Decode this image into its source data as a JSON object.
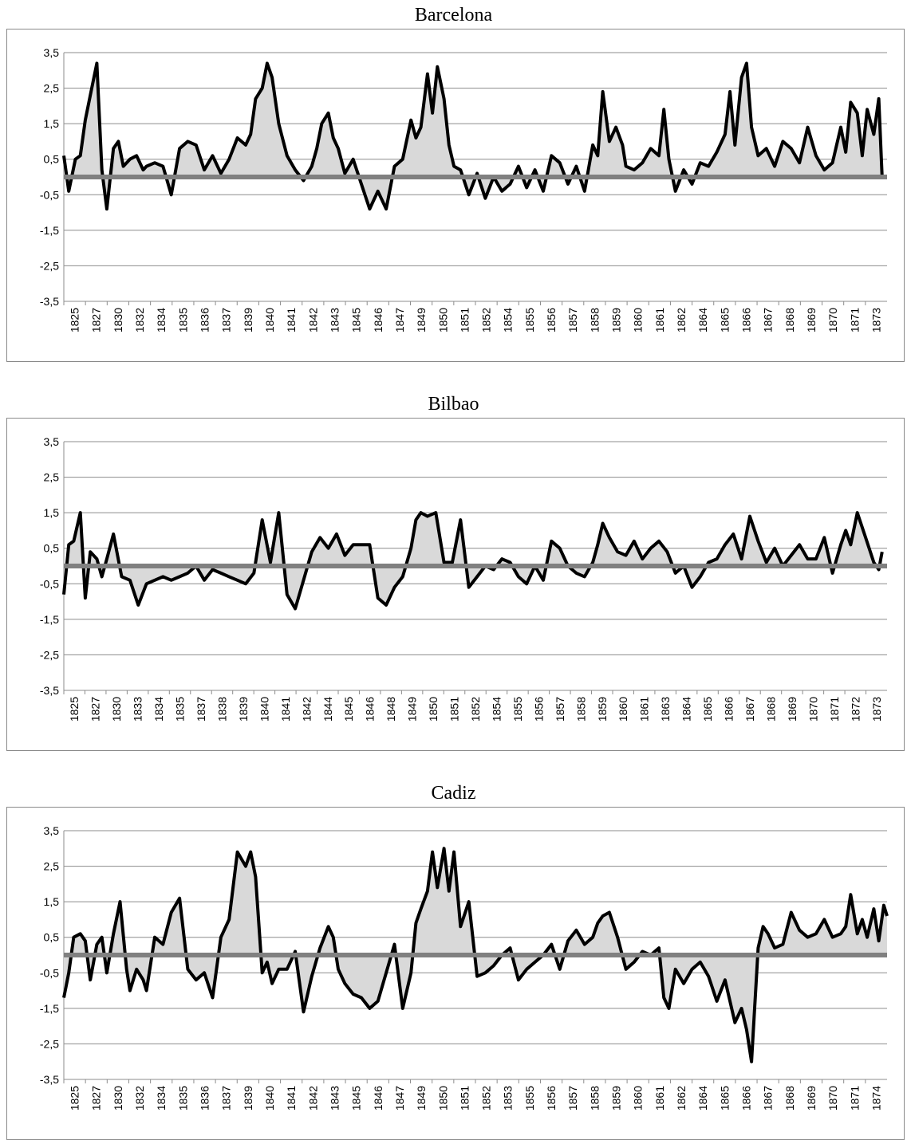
{
  "chart_data": [
    {
      "type": "area",
      "title": "Barcelona",
      "ylim": [
        -3.5,
        3.5
      ],
      "yticks": [
        "3,5",
        "2,5",
        "1,5",
        "0,5",
        "-0,5",
        "-1,5",
        "-2,5",
        "-3,5"
      ],
      "categories": [
        "1825",
        "1827",
        "1830",
        "1832",
        "1834",
        "1835",
        "1836",
        "1837",
        "1839",
        "1840",
        "1841",
        "1842",
        "1843",
        "1845",
        "1846",
        "1847",
        "1849",
        "1850",
        "1851",
        "1852",
        "1854",
        "1855",
        "1856",
        "1857",
        "1858",
        "1859",
        "1860",
        "1861",
        "1862",
        "1864",
        "1865",
        "1866",
        "1867",
        "1868",
        "1869",
        "1870",
        "1871",
        "1873"
      ],
      "grid": true,
      "fill_color": "#d9d9d9",
      "line_color": "#000000",
      "baseline_color": "#808080",
      "series": [
        {
          "x": [
            1825.0,
            1825.3,
            1825.7,
            1826.0,
            1826.3,
            1826.6,
            1827.0,
            1827.3,
            1827.6,
            1828.0,
            1828.3,
            1828.6,
            1829.0,
            1829.4,
            1829.8,
            1830.0,
            1830.5,
            1831.0,
            1831.5,
            1832.0,
            1832.5,
            1833.0,
            1833.5,
            1834.0,
            1834.5,
            1835.0,
            1835.5,
            1836.0,
            1836.3,
            1836.6,
            1837.0,
            1837.3,
            1837.6,
            1838.0,
            1838.5,
            1839.0,
            1839.5,
            1840.0,
            1840.3,
            1840.6,
            1841.0,
            1841.3,
            1841.6,
            1842.0,
            1842.5,
            1843.0,
            1843.5,
            1844.0,
            1844.5,
            1845.0,
            1845.5,
            1846.0,
            1846.3,
            1846.6,
            1847.0,
            1847.3,
            1847.6,
            1848.0,
            1848.3,
            1848.6,
            1849.0,
            1849.5,
            1850.0,
            1850.5,
            1851.0,
            1851.5,
            1852.0,
            1852.5,
            1853.0,
            1853.5,
            1854.0,
            1854.5,
            1855.0,
            1855.5,
            1856.0,
            1856.5,
            1857.0,
            1857.3,
            1857.6,
            1858.0,
            1858.4,
            1858.8,
            1859.0,
            1859.5,
            1860.0,
            1860.5,
            1861.0,
            1861.3,
            1861.6,
            1862.0,
            1862.5,
            1863.0,
            1863.5,
            1864.0,
            1864.5,
            1865.0,
            1865.3,
            1865.6,
            1866.0,
            1866.3,
            1866.6,
            1867.0,
            1867.5,
            1868.0,
            1868.5,
            1869.0,
            1869.5,
            1870.0,
            1870.5,
            1871.0,
            1871.5,
            1872.0,
            1872.3,
            1872.6,
            1873.0,
            1873.3,
            1873.6,
            1874.0,
            1874.3,
            1874.5
          ],
          "y": [
            0.6,
            -0.4,
            0.5,
            0.6,
            1.6,
            2.3,
            3.2,
            0.2,
            -0.9,
            0.8,
            1.0,
            0.3,
            0.5,
            0.6,
            0.2,
            0.3,
            0.4,
            0.3,
            -0.5,
            0.8,
            1.0,
            0.9,
            0.2,
            0.6,
            0.1,
            0.5,
            1.1,
            0.9,
            1.2,
            2.2,
            2.5,
            3.2,
            2.8,
            1.5,
            0.6,
            0.2,
            -0.1,
            0.3,
            0.8,
            1.5,
            1.8,
            1.1,
            0.8,
            0.1,
            0.5,
            -0.2,
            -0.9,
            -0.4,
            -0.9,
            0.3,
            0.5,
            1.6,
            1.1,
            1.4,
            2.9,
            1.8,
            3.1,
            2.2,
            0.9,
            0.3,
            0.2,
            -0.5,
            0.1,
            -0.6,
            0.0,
            -0.4,
            -0.2,
            0.3,
            -0.3,
            0.2,
            -0.4,
            0.6,
            0.4,
            -0.2,
            0.3,
            -0.4,
            0.9,
            0.6,
            2.4,
            1.0,
            1.4,
            0.9,
            0.3,
            0.2,
            0.4,
            0.8,
            0.6,
            1.9,
            0.5,
            -0.4,
            0.2,
            -0.2,
            0.4,
            0.3,
            0.7,
            1.2,
            2.4,
            0.9,
            2.8,
            3.2,
            1.4,
            0.6,
            0.8,
            0.3,
            1.0,
            0.8,
            0.4,
            1.4,
            0.6,
            0.2,
            0.4,
            1.4,
            0.7,
            2.1,
            1.8,
            0.6,
            1.9,
            1.2,
            2.2,
            0.0
          ]
        }
      ]
    },
    {
      "type": "area",
      "title": "Bilbao",
      "ylim": [
        -3.5,
        3.5
      ],
      "yticks": [
        "3,5",
        "2,5",
        "1,5",
        "0,5",
        "-0,5",
        "-1,5",
        "-2,5",
        "-3,5"
      ],
      "categories": [
        "1825",
        "1827",
        "1830",
        "1833",
        "1834",
        "1835",
        "1837",
        "1838",
        "1839",
        "1840",
        "1841",
        "1842",
        "1844",
        "1845",
        "1846",
        "1848",
        "1849",
        "1850",
        "1851",
        "1852",
        "1854",
        "1855",
        "1856",
        "1857",
        "1858",
        "1859",
        "1860",
        "1861",
        "1863",
        "1864",
        "1865",
        "1866",
        "1867",
        "1868",
        "1869",
        "1870",
        "1871",
        "1872",
        "1873"
      ],
      "grid": true,
      "fill_color": "#d9d9d9",
      "line_color": "#000000",
      "baseline_color": "#808080",
      "series": [
        {
          "x": [
            1825.0,
            1825.3,
            1825.6,
            1826.0,
            1826.3,
            1826.6,
            1827.0,
            1827.3,
            1827.6,
            1828.0,
            1828.5,
            1829.0,
            1829.5,
            1830.0,
            1830.5,
            1831.0,
            1831.5,
            1832.0,
            1832.5,
            1833.0,
            1833.5,
            1834.0,
            1834.5,
            1835.0,
            1835.5,
            1836.0,
            1836.5,
            1837.0,
            1837.5,
            1838.0,
            1838.5,
            1839.0,
            1839.5,
            1840.0,
            1840.5,
            1841.0,
            1841.5,
            1842.0,
            1842.5,
            1843.0,
            1843.5,
            1844.0,
            1844.5,
            1845.0,
            1845.5,
            1846.0,
            1846.3,
            1846.6,
            1847.0,
            1847.5,
            1848.0,
            1848.5,
            1849.0,
            1849.5,
            1850.0,
            1850.5,
            1851.0,
            1851.5,
            1852.0,
            1852.5,
            1853.0,
            1853.5,
            1854.0,
            1854.5,
            1855.0,
            1855.5,
            1856.0,
            1856.5,
            1857.0,
            1857.3,
            1857.6,
            1858.0,
            1858.5,
            1859.0,
            1859.5,
            1860.0,
            1860.5,
            1861.0,
            1861.5,
            1862.0,
            1862.5,
            1863.0,
            1863.5,
            1864.0,
            1864.5,
            1865.0,
            1865.5,
            1866.0,
            1866.5,
            1867.0,
            1867.5,
            1868.0,
            1868.5,
            1869.0,
            1869.5,
            1870.0,
            1870.5,
            1871.0,
            1871.5,
            1872.0,
            1872.3,
            1872.6,
            1873.0,
            1873.5,
            1874.0,
            1874.3,
            1874.5
          ],
          "y": [
            -0.8,
            0.6,
            0.7,
            1.5,
            -0.9,
            0.4,
            0.2,
            -0.3,
            0.2,
            0.9,
            -0.3,
            -0.4,
            -1.1,
            -0.5,
            -0.4,
            -0.3,
            -0.4,
            -0.3,
            -0.2,
            0.0,
            -0.4,
            -0.1,
            -0.2,
            -0.3,
            -0.4,
            -0.5,
            -0.2,
            1.3,
            0.1,
            1.5,
            -0.8,
            -1.2,
            -0.4,
            0.4,
            0.8,
            0.5,
            0.9,
            0.3,
            0.6,
            0.6,
            0.6,
            -0.9,
            -1.1,
            -0.6,
            -0.3,
            0.5,
            1.3,
            1.5,
            1.4,
            1.5,
            0.1,
            0.1,
            1.3,
            -0.6,
            -0.3,
            0.0,
            -0.1,
            0.2,
            0.1,
            -0.3,
            -0.5,
            0.0,
            -0.4,
            0.7,
            0.5,
            0.0,
            -0.2,
            -0.3,
            0.1,
            0.6,
            1.2,
            0.8,
            0.4,
            0.3,
            0.7,
            0.2,
            0.5,
            0.7,
            0.4,
            -0.2,
            0.0,
            -0.6,
            -0.3,
            0.1,
            0.2,
            0.6,
            0.9,
            0.2,
            1.4,
            0.7,
            0.1,
            0.5,
            0.0,
            0.3,
            0.6,
            0.2,
            0.2,
            0.8,
            -0.2,
            0.6,
            1.0,
            0.6,
            1.5,
            0.8,
            0.1,
            -0.1,
            0.4
          ]
        }
      ]
    },
    {
      "type": "area",
      "title": "Cadiz",
      "ylim": [
        -3.5,
        3.5
      ],
      "yticks": [
        "3,5",
        "2,5",
        "1,5",
        "0,5",
        "-0,5",
        "-1,5",
        "-2,5",
        "-3,5"
      ],
      "categories": [
        "1825",
        "1827",
        "1830",
        "1832",
        "1834",
        "1835",
        "1836",
        "1837",
        "1839",
        "1840",
        "1841",
        "1842",
        "1843",
        "1845",
        "1846",
        "1847",
        "1849",
        "1850",
        "1851",
        "1852",
        "1853",
        "1855",
        "1856",
        "1857",
        "1858",
        "1859",
        "1860",
        "1861",
        "1862",
        "1864",
        "1865",
        "1866",
        "1867",
        "1868",
        "1869",
        "1870",
        "1871",
        "1874"
      ],
      "grid": true,
      "fill_color": "#d9d9d9",
      "line_color": "#000000",
      "baseline_color": "#808080",
      "series": [
        {
          "x": [
            1825.0,
            1825.3,
            1825.6,
            1826.0,
            1826.3,
            1826.6,
            1827.0,
            1827.3,
            1827.6,
            1828.0,
            1828.4,
            1828.8,
            1829.0,
            1829.4,
            1829.8,
            1830.0,
            1830.5,
            1831.0,
            1831.5,
            1832.0,
            1832.5,
            1833.0,
            1833.5,
            1834.0,
            1834.5,
            1835.0,
            1835.5,
            1836.0,
            1836.3,
            1836.6,
            1837.0,
            1837.3,
            1837.6,
            1838.0,
            1838.5,
            1839.0,
            1839.5,
            1840.0,
            1840.5,
            1841.0,
            1841.3,
            1841.6,
            1842.0,
            1842.5,
            1843.0,
            1843.5,
            1844.0,
            1844.5,
            1845.0,
            1845.5,
            1846.0,
            1846.3,
            1846.6,
            1847.0,
            1847.3,
            1847.6,
            1848.0,
            1848.3,
            1848.6,
            1849.0,
            1849.5,
            1850.0,
            1850.5,
            1851.0,
            1851.5,
            1852.0,
            1852.5,
            1853.0,
            1853.5,
            1854.0,
            1854.5,
            1855.0,
            1855.5,
            1856.0,
            1856.5,
            1857.0,
            1857.3,
            1857.6,
            1858.0,
            1858.5,
            1859.0,
            1859.5,
            1860.0,
            1860.5,
            1861.0,
            1861.3,
            1861.6,
            1862.0,
            1862.5,
            1863.0,
            1863.5,
            1864.0,
            1864.5,
            1865.0,
            1865.3,
            1865.6,
            1866.0,
            1866.3,
            1866.6,
            1867.0,
            1867.3,
            1867.6,
            1868.0,
            1868.5,
            1869.0,
            1869.5,
            1870.0,
            1870.5,
            1871.0,
            1871.5,
            1872.0,
            1872.3,
            1872.6,
            1873.0,
            1873.3,
            1873.6,
            1874.0,
            1874.3,
            1874.6,
            1874.8
          ],
          "y": [
            -1.2,
            -0.5,
            0.5,
            0.6,
            0.4,
            -0.7,
            0.3,
            0.5,
            -0.5,
            0.6,
            1.5,
            -0.4,
            -1.0,
            -0.4,
            -0.7,
            -1.0,
            0.5,
            0.3,
            1.2,
            1.6,
            -0.4,
            -0.7,
            -0.5,
            -1.2,
            0.5,
            1.0,
            2.9,
            2.5,
            2.9,
            2.2,
            -0.5,
            -0.2,
            -0.8,
            -0.4,
            -0.4,
            0.1,
            -1.6,
            -0.6,
            0.2,
            0.8,
            0.5,
            -0.4,
            -0.8,
            -1.1,
            -1.2,
            -1.5,
            -1.3,
            -0.5,
            0.3,
            -1.5,
            -0.5,
            0.9,
            1.3,
            1.8,
            2.9,
            1.9,
            3.0,
            1.8,
            2.9,
            0.8,
            1.5,
            -0.6,
            -0.5,
            -0.3,
            0.0,
            0.2,
            -0.7,
            -0.4,
            -0.2,
            0.0,
            0.3,
            -0.4,
            0.4,
            0.7,
            0.3,
            0.5,
            0.9,
            1.1,
            1.2,
            0.5,
            -0.4,
            -0.2,
            0.1,
            0.0,
            0.2,
            -1.2,
            -1.5,
            -0.4,
            -0.8,
            -0.4,
            -0.2,
            -0.6,
            -1.3,
            -0.7,
            -1.3,
            -1.9,
            -1.5,
            -2.1,
            -3.0,
            0.2,
            0.8,
            0.6,
            0.2,
            0.3,
            1.2,
            0.7,
            0.5,
            0.6,
            1.0,
            0.5,
            0.6,
            0.8,
            1.7,
            0.6,
            1.0,
            0.5,
            1.3,
            0.4,
            1.4,
            1.1
          ]
        }
      ]
    }
  ]
}
